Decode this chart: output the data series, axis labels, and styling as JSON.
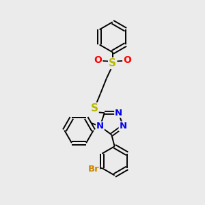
{
  "background_color": "#ebebeb",
  "bond_color": "#000000",
  "S_sulfone_color": "#b8b800",
  "S_thioether_color": "#b8b800",
  "O_color": "#ff0000",
  "N_color": "#0000ee",
  "Br_color": "#cc8800",
  "figsize": [
    3.0,
    3.0
  ],
  "dpi": 100,
  "xlim": [
    0,
    10
  ],
  "ylim": [
    0,
    10
  ]
}
